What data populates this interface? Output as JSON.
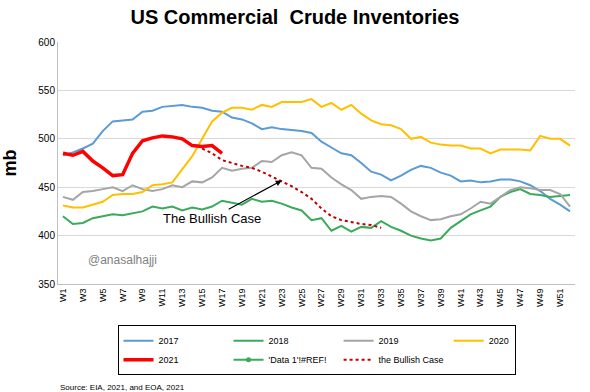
{
  "chart_data": {
    "type": "line",
    "title": "US Commercial  Crude Inventories",
    "y_label": "mb",
    "source": "Source: EIA, 2021, and EOA, 2021",
    "annotations": [
      "The Bullish Case",
      "@anasalhajji"
    ],
    "categories": [
      "W1",
      null,
      "W3",
      null,
      "W5",
      null,
      "W7",
      null,
      "W9",
      null,
      "W11",
      null,
      "W13",
      null,
      "W15",
      null,
      "W17",
      null,
      "W19",
      null,
      "W21",
      null,
      "W23",
      null,
      "W25",
      null,
      "W27",
      null,
      "W29",
      null,
      "W31",
      null,
      "W33",
      null,
      "W35",
      null,
      "W37",
      null,
      "W39",
      null,
      "W41",
      null,
      "W43",
      null,
      "W45",
      null,
      "W47",
      null,
      "W49",
      null,
      "W51",
      null
    ],
    "ylim": [
      350,
      600
    ],
    "yticks": [
      350,
      400,
      450,
      500,
      550,
      600
    ],
    "grid": true,
    "legend": "bottom",
    "series": [
      {
        "name": "2017",
        "color": "#5b9bd5",
        "line_style": "solid",
        "values": [
          483,
          486,
          490,
          495,
          508,
          518,
          519,
          520,
          528,
          529,
          533,
          534,
          535,
          533,
          532,
          529,
          528,
          522,
          520,
          516,
          510,
          512,
          510,
          509,
          508,
          506,
          497,
          491,
          485,
          483,
          475,
          466,
          463,
          457,
          462,
          468,
          472,
          470,
          465,
          462,
          456,
          457,
          455,
          456,
          458,
          458,
          456,
          452,
          446,
          438,
          432,
          425
        ]
      },
      {
        "name": "2018",
        "color": "#3aaa5c",
        "line_style": "solid",
        "values": [
          420,
          412,
          413,
          418,
          420,
          422,
          421,
          423,
          425,
          430,
          428,
          430,
          426,
          429,
          427,
          430,
          436,
          434,
          432,
          438,
          435,
          436,
          433,
          429,
          426,
          416,
          418,
          405,
          410,
          404,
          409,
          408,
          415,
          409,
          405,
          400,
          397,
          395,
          397,
          408,
          415,
          422,
          426,
          430,
          440,
          445,
          448,
          443,
          442,
          440,
          441,
          442
        ]
      },
      {
        "name": "2019",
        "color": "#a5a5a5",
        "line_style": "solid",
        "values": [
          440,
          437,
          445,
          446,
          448,
          450,
          446,
          452,
          448,
          446,
          448,
          452,
          450,
          456,
          455,
          460,
          470,
          467,
          469,
          470,
          477,
          476,
          483,
          486,
          483,
          470,
          469,
          460,
          453,
          447,
          438,
          440,
          441,
          440,
          433,
          425,
          420,
          416,
          417,
          420,
          422,
          428,
          435,
          433,
          440,
          447,
          450,
          449,
          447,
          447,
          443,
          430
        ]
      },
      {
        "name": "2020",
        "color": "#ffc000",
        "line_style": "solid",
        "values": [
          431,
          429,
          429,
          432,
          435,
          442,
          443,
          443,
          445,
          452,
          453,
          455,
          468,
          482,
          500,
          518,
          527,
          532,
          532,
          530,
          535,
          533,
          538,
          538,
          538,
          541,
          533,
          537,
          530,
          535,
          526,
          519,
          515,
          514,
          510,
          500,
          502,
          496,
          494,
          493,
          493,
          490,
          490,
          485,
          489,
          489,
          489,
          488,
          503,
          500,
          500,
          493
        ]
      },
      {
        "name": "2021",
        "color": "#ff0000",
        "line_style": "solid",
        "values": [
          485,
          483,
          487,
          477,
          470,
          462,
          463,
          485,
          498,
          501,
          503,
          502,
          500,
          493,
          492,
          493,
          485,
          null,
          null,
          null,
          null,
          null,
          null,
          null,
          null,
          null,
          null,
          null,
          null,
          null,
          null,
          null,
          null,
          null,
          null,
          null,
          null,
          null,
          null,
          null,
          null,
          null,
          null,
          null,
          null,
          null,
          null,
          null,
          null,
          null,
          null,
          null
        ]
      },
      {
        "name": "'Data 1'!#REF!",
        "color": "#3aaa5c",
        "line_style": "solid",
        "marker": "circle",
        "values": [
          null,
          null,
          null,
          null,
          null,
          null,
          null,
          null,
          null,
          null,
          null,
          null,
          null,
          null,
          null,
          null,
          null,
          null,
          null,
          null,
          null,
          null,
          null,
          null,
          null,
          null,
          null,
          null,
          null,
          null,
          null,
          null,
          null,
          null,
          null,
          null,
          null,
          null,
          null,
          null,
          null,
          null,
          null,
          null,
          null,
          null,
          null,
          null,
          null,
          null,
          null,
          null
        ]
      },
      {
        "name": "the Bullish Case",
        "color": "#c00000",
        "line_style": "dot",
        "values": [
          null,
          null,
          null,
          null,
          null,
          null,
          null,
          null,
          null,
          null,
          null,
          null,
          null,
          null,
          490,
          485,
          478,
          475,
          472,
          470,
          466,
          461,
          456,
          451,
          445,
          438,
          428,
          420,
          416,
          414,
          412,
          411,
          408,
          null,
          null,
          null,
          null,
          null,
          null,
          null,
          null,
          null,
          null,
          null,
          null,
          null,
          null,
          null,
          null,
          null,
          null,
          null
        ]
      }
    ]
  }
}
